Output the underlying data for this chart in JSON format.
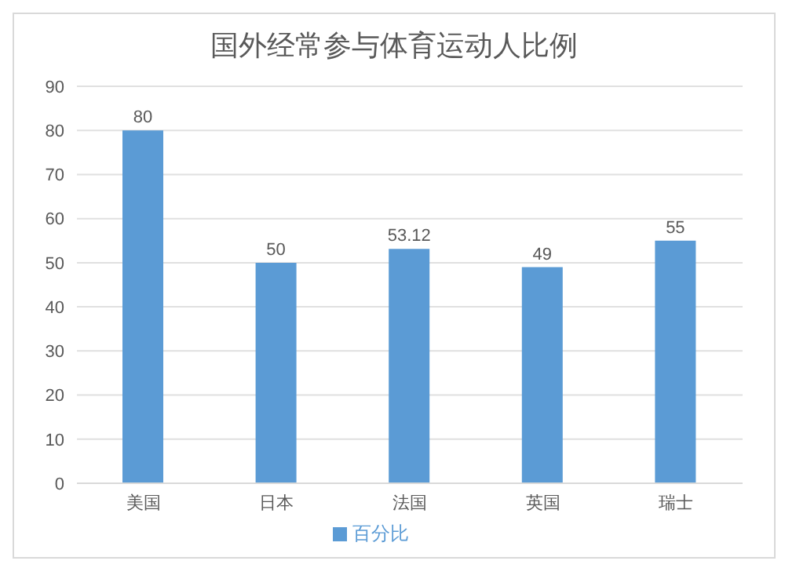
{
  "chart_data": {
    "type": "bar",
    "title": "国外经常参与体育运动人比例",
    "categories": [
      "美国",
      "日本",
      "法国",
      "英国",
      "瑞士"
    ],
    "series": [
      {
        "name": "百分比",
        "color": "#5b9bd5",
        "values": [
          80,
          50,
          53.12,
          49,
          55
        ]
      }
    ],
    "ylim": [
      0,
      90
    ],
    "yticks": [
      0,
      10,
      20,
      30,
      40,
      50,
      60,
      70,
      80,
      90
    ],
    "grid": "y",
    "legend": "bottom",
    "data_labels": true
  }
}
